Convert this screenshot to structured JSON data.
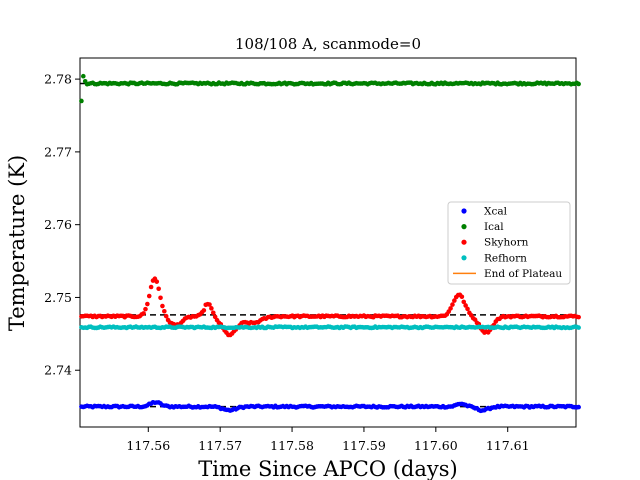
{
  "chart_data": {
    "type": "scatter",
    "title": "108/108 A, scanmode=0",
    "xlabel": "Time Since APCO (days)",
    "ylabel": "Temperature (K)",
    "xlim": [
      117.5505,
      117.6195
    ],
    "ylim": [
      2.7322,
      2.7829
    ],
    "xticks": [
      117.56,
      117.57,
      117.58,
      117.59,
      117.6,
      117.61
    ],
    "xtick_labels": [
      "117.56",
      "117.57",
      "117.58",
      "117.59",
      "117.60",
      "117.61"
    ],
    "yticks": [
      2.74,
      2.75,
      2.76,
      2.77,
      2.78
    ],
    "ytick_labels": [
      "2.74",
      "2.75",
      "2.76",
      "2.77",
      "2.78"
    ],
    "grid": false,
    "legend_position": "center-right",
    "x_sampling": {
      "start": 117.5507,
      "step": 0.000262,
      "count": 265
    },
    "series": [
      {
        "name": "Xcal",
        "color": "#0000ff",
        "baseline": 2.735,
        "bumps": [
          {
            "center": 117.561,
            "width": 0.0007,
            "amplitude": 0.0006
          },
          {
            "center": 117.5713,
            "width": 0.0009,
            "amplitude": -0.0005
          },
          {
            "center": 117.6035,
            "width": 0.0006,
            "amplitude": 0.0004
          },
          {
            "center": 117.6065,
            "width": 0.0008,
            "amplitude": -0.0005
          }
        ],
        "noise": 0.00012,
        "first_point": 2.735
      },
      {
        "name": "Ical",
        "color": "#008000",
        "baseline": 2.7794,
        "bumps": [],
        "noise": 0.00012,
        "first_point": 2.777,
        "second_point": 2.7804,
        "third_point": 2.7797
      },
      {
        "name": "Skyhorn",
        "color": "#ff0000",
        "baseline": 2.7474,
        "bumps": [
          {
            "center": 117.5609,
            "width": 0.0007,
            "amplitude": 0.0052
          },
          {
            "center": 117.5638,
            "width": 0.0009,
            "amplitude": -0.0012
          },
          {
            "center": 117.5683,
            "width": 0.0005,
            "amplitude": 0.0018
          },
          {
            "center": 117.5713,
            "width": 0.001,
            "amplitude": -0.0025
          },
          {
            "center": 117.5745,
            "width": 0.0012,
            "amplitude": -0.0009
          },
          {
            "center": 117.6032,
            "width": 0.0008,
            "amplitude": 0.003
          },
          {
            "center": 117.607,
            "width": 0.0009,
            "amplitude": -0.0022
          }
        ],
        "noise": 0.00012,
        "first_point": 2.7474
      },
      {
        "name": "Refhorn",
        "color": "#00bfbf",
        "baseline": 2.7459,
        "bumps": [],
        "noise": 0.0001,
        "first_point": 2.7459
      }
    ],
    "plateau_lines": [
      {
        "y": 2.7794,
        "x": [
          117.5505,
          117.6195
        ]
      },
      {
        "y": 2.7476,
        "x": [
          117.5505,
          117.6195
        ]
      },
      {
        "y": 2.7459,
        "x": [
          117.5505,
          117.6195
        ]
      },
      {
        "y": 2.735,
        "x": [
          117.5505,
          117.6195
        ]
      }
    ],
    "legend": [
      {
        "label": "Xcal",
        "kind": "marker",
        "color": "#0000ff"
      },
      {
        "label": "Ical",
        "kind": "marker",
        "color": "#008000"
      },
      {
        "label": "Skyhorn",
        "kind": "marker",
        "color": "#ff0000"
      },
      {
        "label": "Refhorn",
        "kind": "marker",
        "color": "#00bfbf"
      },
      {
        "label": "End of Plateau",
        "kind": "line",
        "color": "#ff7f0e"
      }
    ]
  }
}
